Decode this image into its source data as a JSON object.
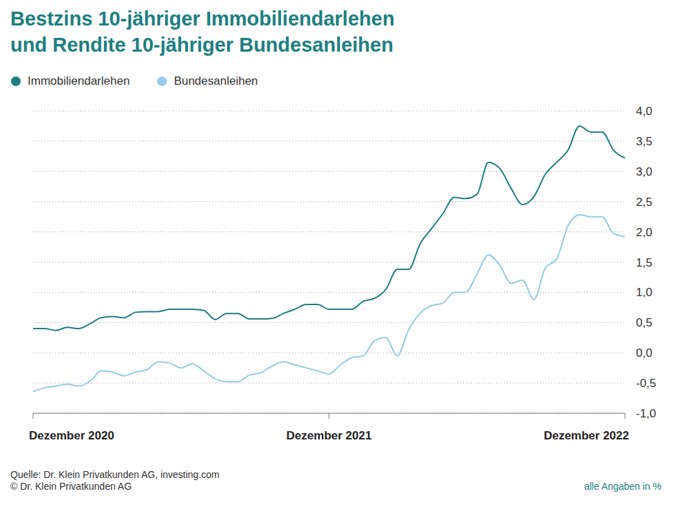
{
  "chart_data": {
    "type": "line",
    "title": "Bestzins 10-jähriger Immobiliendarlehen\nund Rendite 10-jähriger Bundesanleihen",
    "categories": [
      "Dezember 2020",
      null,
      null,
      null,
      null,
      null,
      null,
      null,
      null,
      null,
      null,
      null,
      null,
      null,
      null,
      null,
      null,
      null,
      null,
      null,
      null,
      null,
      null,
      null,
      null,
      null,
      "Dezember 2021",
      null,
      null,
      null,
      null,
      null,
      null,
      null,
      null,
      null,
      null,
      null,
      null,
      null,
      null,
      null,
      null,
      null,
      null,
      null,
      null,
      null,
      null,
      null,
      null,
      null,
      "Dezember 2022"
    ],
    "series": [
      {
        "name": "Immobiliendarlehen",
        "color": "#1b7f82",
        "values": [
          0.4,
          0.4,
          0.37,
          0.42,
          0.4,
          0.48,
          0.58,
          0.6,
          0.58,
          0.67,
          0.68,
          0.68,
          0.72,
          0.72,
          0.72,
          0.7,
          0.55,
          0.65,
          0.65,
          0.56,
          0.56,
          0.57,
          0.65,
          0.72,
          0.8,
          0.8,
          0.72,
          0.72,
          0.72,
          0.85,
          0.9,
          1.05,
          1.38,
          1.38,
          1.8,
          2.05,
          2.3,
          2.57,
          2.55,
          2.62,
          3.15,
          3.05,
          2.72,
          2.45,
          2.58,
          2.95,
          3.15,
          3.35,
          3.75,
          3.65,
          3.65,
          3.35,
          3.22
        ]
      },
      {
        "name": "Bundesanleihen",
        "color": "#94cbe6",
        "values": [
          -0.64,
          -0.58,
          -0.55,
          -0.52,
          -0.55,
          -0.47,
          -0.3,
          -0.32,
          -0.38,
          -0.32,
          -0.28,
          -0.15,
          -0.17,
          -0.25,
          -0.18,
          -0.3,
          -0.43,
          -0.48,
          -0.48,
          -0.37,
          -0.33,
          -0.22,
          -0.15,
          -0.2,
          -0.25,
          -0.3,
          -0.35,
          -0.2,
          -0.08,
          -0.05,
          0.2,
          0.25,
          -0.05,
          0.38,
          0.65,
          0.78,
          0.82,
          1.0,
          1.0,
          1.3,
          1.62,
          1.45,
          1.15,
          1.2,
          0.88,
          1.4,
          1.55,
          2.1,
          2.28,
          2.25,
          2.25,
          1.97,
          1.92
        ]
      }
    ],
    "ylim": [
      -1,
      4
    ],
    "yticks": [
      {
        "value": -1,
        "label": "-1,0"
      },
      {
        "value": -0.5,
        "label": "-0,5"
      },
      {
        "value": 0,
        "label": "0,0"
      },
      {
        "value": 0.5,
        "label": "0,5"
      },
      {
        "value": 1,
        "label": "1,0"
      },
      {
        "value": 1.5,
        "label": "1,5"
      },
      {
        "value": 2,
        "label": "2,0"
      },
      {
        "value": 2.5,
        "label": "2,5"
      },
      {
        "value": 3,
        "label": "3,0"
      },
      {
        "value": 3.5,
        "label": "3,5"
      },
      {
        "value": 4,
        "label": "4,0"
      }
    ],
    "grid": true,
    "legend": "top-left",
    "annotations": [
      "Quelle: Dr. Klein Privatkunden AG, investing.com",
      "© Dr. Klein Privatkunden AG",
      "alle Angaben in %"
    ]
  }
}
